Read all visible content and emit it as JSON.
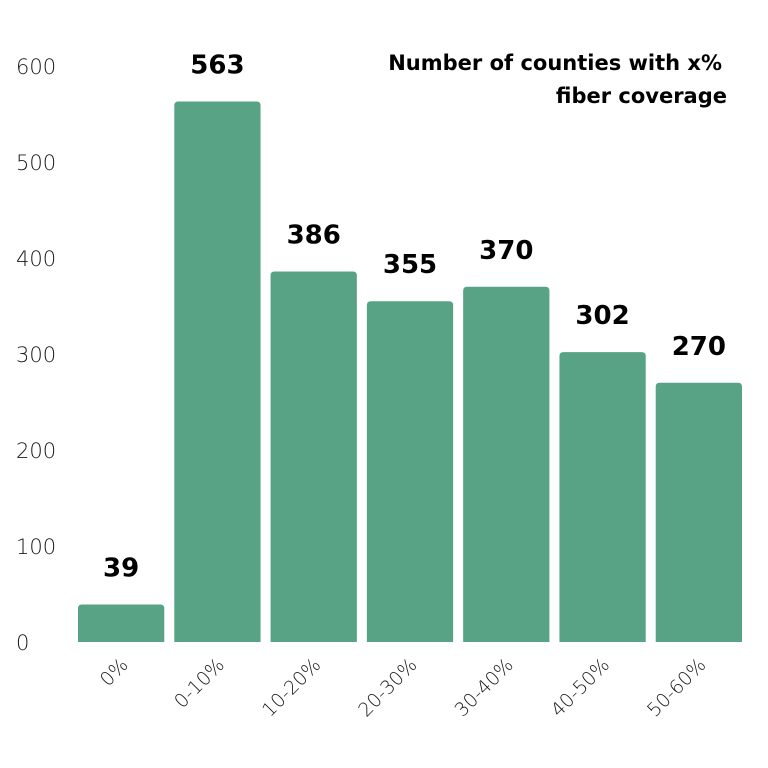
{
  "chart_data": {
    "type": "bar",
    "title_lines": [
      "Number of counties with x%",
      "fiber coverage"
    ],
    "categories": [
      "0%",
      "0-10%",
      "10-20%",
      "20-30%",
      "30-40%",
      "40-50%",
      "50-60%"
    ],
    "values": [
      39,
      563,
      386,
      355,
      370,
      302,
      270
    ],
    "data_labels": [
      "39",
      "563",
      "386",
      "355",
      "370",
      "302",
      "270"
    ],
    "yticks": [
      0,
      100,
      200,
      300,
      400,
      500,
      600
    ],
    "ytick_labels": [
      "0",
      "100",
      "200",
      "300",
      "400",
      "500",
      "600"
    ],
    "ylim": [
      0,
      600
    ],
    "xlabel": "",
    "ylabel": "",
    "grid": false,
    "legend": "none",
    "bar_color": "#58a385"
  }
}
